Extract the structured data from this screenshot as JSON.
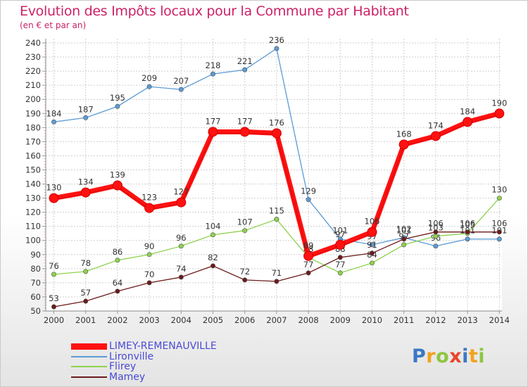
{
  "header": {
    "title": "Evolution des Impôts locaux pour la Commune par Habitant",
    "subtitle": "(en € et par an)"
  },
  "chart_data": {
    "type": "line",
    "title": "Evolution des Impôts locaux pour la Commune par Habitant",
    "subtitle": "(en € et par an)",
    "x": [
      2000,
      2001,
      2002,
      2003,
      2004,
      2005,
      2006,
      2007,
      2008,
      2009,
      2010,
      2011,
      2012,
      2013,
      2014
    ],
    "ylim": [
      50,
      240
    ],
    "yticks": [
      50,
      60,
      70,
      80,
      90,
      100,
      110,
      120,
      130,
      140,
      150,
      160,
      170,
      180,
      190,
      200,
      210,
      220,
      230,
      240
    ],
    "grid": true,
    "legend_position": "bottom-left",
    "series": [
      {
        "name": "LIMEY-REMENAUVILLE",
        "color": "#ff1111",
        "emphasis": true,
        "values": [
          130,
          134,
          139,
          123,
          127,
          177,
          177,
          176,
          89,
          97,
          106,
          168,
          174,
          184,
          190
        ]
      },
      {
        "name": "Lironville",
        "color": "#5b9bd5",
        "emphasis": false,
        "values": [
          184,
          187,
          195,
          209,
          207,
          218,
          221,
          236,
          129,
          101,
          97,
          102,
          96,
          101,
          101
        ]
      },
      {
        "name": "Flirey",
        "color": "#8fd14f",
        "emphasis": false,
        "values": [
          76,
          78,
          86,
          90,
          96,
          104,
          107,
          115,
          88,
          77,
          84,
          97,
          103,
          105,
          130
        ]
      },
      {
        "name": "Mamey",
        "color": "#6b1a1a",
        "emphasis": false,
        "values": [
          53,
          57,
          64,
          70,
          74,
          82,
          72,
          71,
          77,
          88,
          91,
          101,
          106,
          106,
          106
        ]
      }
    ]
  },
  "logo": {
    "letters": [
      "P",
      "r",
      "o",
      "x",
      "i",
      "t",
      "i"
    ],
    "colors": [
      "#3a78c4",
      "#f2a21c",
      "#8dc63f",
      "#e8452c",
      "#3a78c4",
      "#f2a21c",
      "#8dc63f"
    ]
  }
}
